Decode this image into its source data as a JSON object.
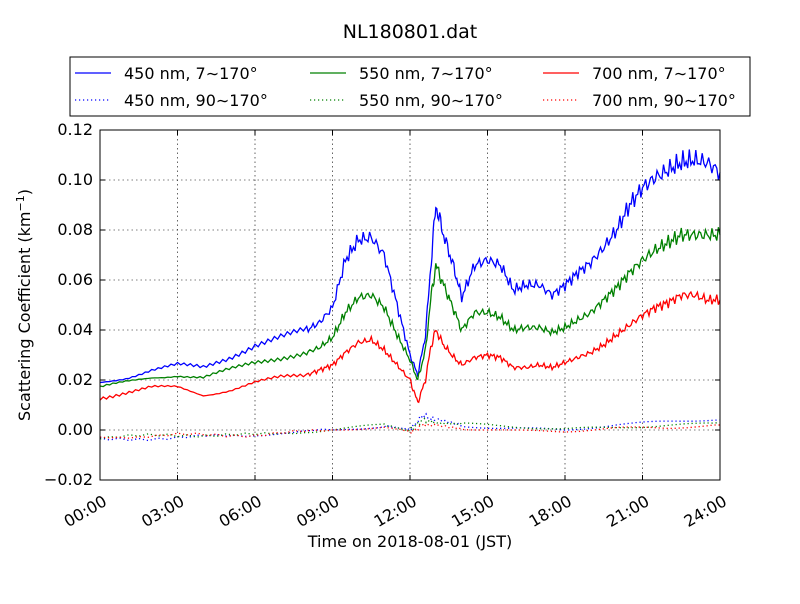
{
  "chart_data": {
    "type": "line",
    "title": "NL180801.dat",
    "xlabel": "Time on 2018-08-01 (JST)",
    "ylabel_main": "Scattering Coefficient (km",
    "ylabel_sup": "−1",
    "ylabel_close": ")",
    "xlim": [
      "00:00",
      "24:00"
    ],
    "ylim": [
      -0.02,
      0.12
    ],
    "grid": true,
    "legend_position": "top, above plot (3 columns)",
    "x_ticks": [
      "00:00",
      "03:00",
      "06:00",
      "09:00",
      "12:00",
      "15:00",
      "18:00",
      "21:00",
      "24:00"
    ],
    "y_ticks": [
      "−0.02",
      "0.00",
      "0.02",
      "0.04",
      "0.06",
      "0.08",
      "0.10",
      "0.12"
    ],
    "series": [
      {
        "name": "450 nm, 7∼170°",
        "color": "#0000ff",
        "style": "solid",
        "x": [
          0,
          1,
          2,
          3,
          4,
          5,
          6,
          7,
          8,
          8.5,
          9,
          9.5,
          10,
          10.5,
          11,
          11.5,
          12,
          12.3,
          12.6,
          12.8,
          13,
          13.3,
          13.7,
          14,
          14.5,
          15,
          15.5,
          16,
          16.5,
          17,
          17.5,
          18,
          18.5,
          19,
          19.5,
          20,
          20.5,
          21,
          21.5,
          22,
          22.5,
          23,
          23.5,
          24
        ],
        "y": [
          0.019,
          0.021,
          0.024,
          0.026,
          0.025,
          0.029,
          0.034,
          0.037,
          0.04,
          0.043,
          0.049,
          0.068,
          0.076,
          0.077,
          0.07,
          0.05,
          0.03,
          0.022,
          0.038,
          0.065,
          0.09,
          0.078,
          0.065,
          0.053,
          0.066,
          0.068,
          0.066,
          0.056,
          0.058,
          0.058,
          0.054,
          0.058,
          0.063,
          0.067,
          0.073,
          0.08,
          0.09,
          0.097,
          0.101,
          0.104,
          0.107,
          0.108,
          0.107,
          0.103
        ]
      },
      {
        "name": "450 nm, 90∼170°",
        "color": "#0000ff",
        "style": "dotted",
        "x": [
          0,
          3,
          6,
          9,
          11,
          12,
          12.5,
          13,
          14,
          16,
          18,
          20,
          22,
          24
        ],
        "y": [
          -0.004,
          -0.003,
          -0.002,
          0.0,
          0.002,
          0.0,
          0.006,
          0.004,
          0.002,
          0.001,
          0.0,
          0.002,
          0.003,
          0.004
        ]
      },
      {
        "name": "550 nm, 7∼170°",
        "color": "#008000",
        "style": "solid",
        "x": [
          0,
          1,
          2,
          3,
          4,
          5,
          6,
          7,
          8,
          8.5,
          9,
          9.5,
          10,
          10.5,
          11,
          11.5,
          12,
          12.3,
          12.6,
          12.8,
          13,
          13.3,
          13.7,
          14,
          14.5,
          15,
          15.5,
          16,
          16.5,
          17,
          17.5,
          18,
          18.5,
          19,
          19.5,
          20,
          20.5,
          21,
          21.5,
          22,
          22.5,
          23,
          23.5,
          24
        ],
        "y": [
          0.017,
          0.019,
          0.021,
          0.022,
          0.021,
          0.024,
          0.027,
          0.029,
          0.031,
          0.033,
          0.037,
          0.047,
          0.053,
          0.054,
          0.049,
          0.038,
          0.028,
          0.02,
          0.032,
          0.052,
          0.066,
          0.058,
          0.048,
          0.04,
          0.047,
          0.047,
          0.045,
          0.04,
          0.041,
          0.041,
          0.039,
          0.041,
          0.044,
          0.047,
          0.052,
          0.057,
          0.063,
          0.068,
          0.072,
          0.075,
          0.078,
          0.078,
          0.078,
          0.078
        ]
      },
      {
        "name": "550 nm, 90∼170°",
        "color": "#008000",
        "style": "dotted",
        "x": [
          0,
          3,
          6,
          9,
          11,
          12,
          12.5,
          13,
          14,
          16,
          18,
          20,
          22,
          24
        ],
        "y": [
          -0.003,
          -0.002,
          -0.002,
          0.0,
          0.002,
          0.0,
          0.004,
          0.003,
          0.002,
          0.001,
          0.0,
          0.001,
          0.002,
          0.003
        ]
      },
      {
        "name": "700 nm, 7∼170°",
        "color": "#ff0000",
        "style": "solid",
        "x": [
          0,
          1,
          2,
          3,
          4,
          5,
          6,
          7,
          8,
          8.5,
          9,
          9.5,
          10,
          10.5,
          11,
          11.5,
          12,
          12.3,
          12.6,
          12.8,
          13,
          13.3,
          13.7,
          14,
          14.5,
          15,
          15.5,
          16,
          16.5,
          17,
          17.5,
          18,
          18.5,
          19,
          19.5,
          20,
          20.5,
          21,
          21.5,
          22,
          22.5,
          23,
          23.5,
          24
        ],
        "y": [
          0.013,
          0.015,
          0.017,
          0.017,
          0.014,
          0.016,
          0.019,
          0.021,
          0.022,
          0.024,
          0.026,
          0.031,
          0.035,
          0.036,
          0.032,
          0.026,
          0.02,
          0.011,
          0.02,
          0.033,
          0.04,
          0.034,
          0.029,
          0.026,
          0.029,
          0.03,
          0.029,
          0.025,
          0.025,
          0.026,
          0.025,
          0.027,
          0.029,
          0.031,
          0.034,
          0.038,
          0.042,
          0.046,
          0.049,
          0.051,
          0.054,
          0.054,
          0.052,
          0.052
        ]
      },
      {
        "name": "700 nm, 90∼170°",
        "color": "#ff0000",
        "style": "dotted",
        "x": [
          0,
          3,
          6,
          9,
          11,
          12,
          12.5,
          13,
          14,
          16,
          18,
          20,
          22,
          24
        ],
        "y": [
          -0.003,
          -0.002,
          -0.002,
          0.0,
          0.001,
          -0.001,
          0.002,
          0.002,
          0.001,
          0.0,
          0.0,
          0.001,
          0.001,
          0.002
        ]
      }
    ]
  }
}
